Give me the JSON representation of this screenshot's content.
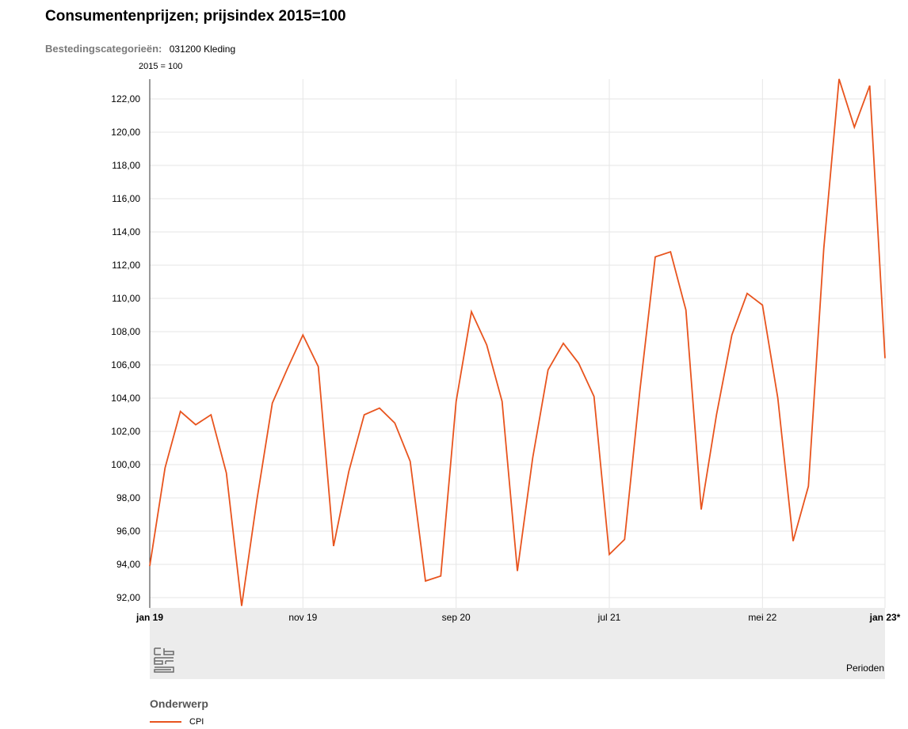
{
  "page": {
    "title": "Consumentenprijzen; prijsindex 2015=100",
    "filter_label": "Bestedingscategorieën:",
    "filter_value": "031200 Kleding",
    "axis_unit": "2015 = 100",
    "x_axis_title": "Perioden",
    "legend_title": "Onderwerp",
    "logo_icon": "cbs-logo-icon"
  },
  "chart_data": {
    "type": "line",
    "title": "Consumentenprijzen; prijsindex 2015=100",
    "ylabel": "2015 = 100",
    "xlabel": "Perioden",
    "ylim": [
      91.5,
      123.2
    ],
    "yticks": [
      92,
      94,
      96,
      98,
      100,
      102,
      104,
      106,
      108,
      110,
      112,
      114,
      116,
      118,
      120,
      122
    ],
    "ytick_labels": [
      "92,00",
      "94,00",
      "96,00",
      "98,00",
      "100,00",
      "102,00",
      "104,00",
      "106,00",
      "108,00",
      "110,00",
      "112,00",
      "114,00",
      "116,00",
      "118,00",
      "120,00",
      "122,00"
    ],
    "xticks": [
      {
        "index": 0,
        "label": "jan 19",
        "bold": true
      },
      {
        "index": 10,
        "label": "nov 19",
        "bold": false
      },
      {
        "index": 20,
        "label": "sep 20",
        "bold": false
      },
      {
        "index": 30,
        "label": "jul 21",
        "bold": false
      },
      {
        "index": 40,
        "label": "mei 22",
        "bold": false
      },
      {
        "index": 48,
        "label": "jan 23*",
        "bold": true
      }
    ],
    "grid": true,
    "series": [
      {
        "name": "CPI",
        "color": "#e8541e",
        "x": [
          "jan 19",
          "feb 19",
          "mrt 19",
          "apr 19",
          "mei 19",
          "jun 19",
          "jul 19",
          "aug 19",
          "sep 19",
          "okt 19",
          "nov 19",
          "dec 19",
          "jan 20",
          "feb 20",
          "mrt 20",
          "apr 20",
          "mei 20",
          "jun 20",
          "jul 20",
          "aug 20",
          "sep 20",
          "okt 20",
          "nov 20",
          "dec 20",
          "jan 21",
          "feb 21",
          "mrt 21",
          "apr 21",
          "mei 21",
          "jun 21",
          "jul 21",
          "aug 21",
          "sep 21",
          "okt 21",
          "nov 21",
          "dec 21",
          "jan 22",
          "feb 22",
          "mrt 22",
          "apr 22",
          "mei 22",
          "jun 22",
          "jul 22",
          "aug 22",
          "sep 22",
          "okt 22",
          "nov 22",
          "dec 22",
          "jan 23*"
        ],
        "values": [
          93.9,
          99.8,
          103.2,
          102.4,
          103.0,
          99.5,
          91.5,
          97.9,
          103.7,
          105.8,
          107.8,
          105.9,
          95.1,
          99.6,
          103.0,
          103.4,
          102.5,
          100.2,
          93.0,
          93.3,
          103.8,
          109.2,
          107.2,
          103.8,
          93.6,
          100.4,
          105.7,
          107.3,
          106.1,
          104.1,
          94.6,
          95.5,
          104.5,
          112.5,
          112.8,
          109.3,
          97.3,
          103.0,
          107.8,
          110.3,
          109.6,
          104.0,
          95.4,
          98.7,
          113.0,
          123.2,
          120.3,
          122.8,
          106.4
        ]
      }
    ],
    "legend": "bottom-left"
  }
}
